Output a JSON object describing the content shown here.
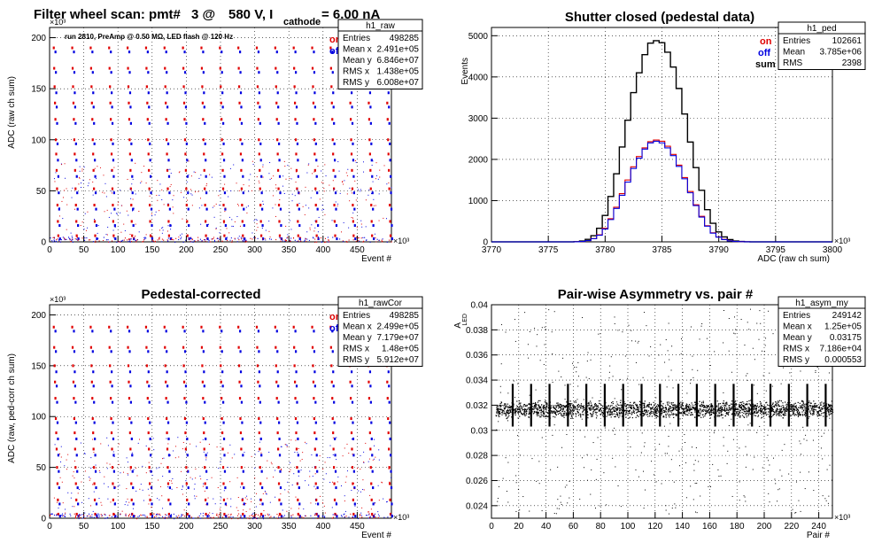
{
  "colors": {
    "on": "#e00000",
    "off": "#0000e0",
    "sum": "#000000",
    "grid": "#000000"
  },
  "panels": [
    {
      "id": "raw",
      "title_parts": [
        "Filter wheel scan: pmt#",
        "3 @",
        "580 V, I",
        "cathode",
        "= 6.00 nA"
      ],
      "subtitle": "run 2810, PreAmp @ 0.50 MΩ, LED flash @  120 Hz",
      "ylabel": "ADC (raw ch sum)",
      "xlabel": "Event #",
      "yexp": "×10³",
      "xexp": "×10³",
      "legend": [
        "on",
        "off"
      ],
      "stats": {
        "name": "h1_raw",
        "rows": [
          [
            "Entries",
            "498285"
          ],
          [
            "Mean x",
            "2.491e+05"
          ],
          [
            "Mean y",
            "6.846e+07"
          ],
          [
            "RMS x",
            "1.438e+05"
          ],
          [
            "RMS y",
            "6.008e+07"
          ]
        ]
      }
    },
    {
      "id": "ped",
      "title": "Shutter closed (pedestal data)",
      "ylabel": "Events",
      "xlabel": "ADC (raw ch sum)",
      "xexp": "×10³",
      "legend": [
        "on",
        "off",
        "sum"
      ],
      "stats": {
        "name": "h1_ped",
        "rows": [
          [
            "Entries",
            "102661"
          ],
          [
            "Mean",
            "3.785e+06"
          ],
          [
            "RMS",
            "2398"
          ]
        ]
      }
    },
    {
      "id": "rawcor",
      "title": "Pedestal-corrected",
      "ylabel": "ADC (raw, ped-corr ch sum)",
      "xlabel": "Event #",
      "yexp": "×10³",
      "xexp": "×10³",
      "legend": [
        "on",
        "off"
      ],
      "stats": {
        "name": "h1_rawCor",
        "rows": [
          [
            "Entries",
            "498285"
          ],
          [
            "Mean x",
            "2.499e+05"
          ],
          [
            "Mean y",
            "7.179e+07"
          ],
          [
            "RMS x",
            "1.48e+05"
          ],
          [
            "RMS y",
            "5.912e+07"
          ]
        ]
      }
    },
    {
      "id": "asym",
      "title": "Pair-wise Asymmetry vs. pair #",
      "ylabel": "A",
      "ylabel_sub": "LED",
      "xlabel": "Pair #",
      "xexp": "×10³",
      "stats": {
        "name": "h1_asym_my",
        "rows": [
          [
            "Entries",
            "249142"
          ],
          [
            "Mean x",
            "1.25e+05"
          ],
          [
            "Mean y",
            "0.03175"
          ],
          [
            "RMS x",
            "7.186e+04"
          ],
          [
            "RMS y",
            "0.000553"
          ]
        ]
      }
    }
  ],
  "chart_data": [
    {
      "type": "scatter",
      "name": "h1_raw",
      "x_ticks": [
        0,
        50,
        100,
        150,
        200,
        250,
        300,
        350,
        400,
        450
      ],
      "y_ticks": [
        0,
        50,
        100,
        150,
        200
      ],
      "xlim": [
        0,
        500
      ],
      "ylim": [
        0,
        210
      ],
      "grid": true,
      "cycle_period": 27,
      "levels": {
        "on": [
          190,
          170,
          152,
          136,
          120,
          100,
          86,
          70,
          52,
          36,
          20,
          6
        ],
        "off": [
          186,
          166,
          146,
          132,
          116,
          96,
          80,
          64,
          48,
          32,
          16,
          3
        ]
      }
    },
    {
      "type": "line",
      "name": "h1_ped",
      "xlim": [
        3770,
        3800
      ],
      "ylim": [
        0,
        5200
      ],
      "x_ticks": [
        3770,
        3775,
        3780,
        3785,
        3790,
        3795,
        3800
      ],
      "y_ticks": [
        0,
        1000,
        2000,
        3000,
        4000,
        5000
      ],
      "grid": true,
      "x": [
        3777.5,
        3778.0,
        3778.5,
        3779.0,
        3779.5,
        3780.0,
        3780.5,
        3781.0,
        3781.5,
        3782.0,
        3782.5,
        3783.0,
        3783.5,
        3784.0,
        3784.5,
        3785.0,
        3785.5,
        3786.0,
        3786.5,
        3787.0,
        3787.5,
        3788.0,
        3788.5,
        3789.0,
        3789.5,
        3790.0,
        3790.5,
        3791.0,
        3791.5,
        3792.0,
        3792.5
      ],
      "series": [
        {
          "name": "sum",
          "values": [
            5,
            20,
            60,
            150,
            330,
            640,
            1100,
            1650,
            2300,
            2950,
            3620,
            4100,
            4540,
            4820,
            4880,
            4830,
            4600,
            4240,
            3720,
            3100,
            2420,
            1800,
            1250,
            780,
            450,
            240,
            120,
            55,
            20,
            8,
            2
          ]
        },
        {
          "name": "on",
          "values": [
            2,
            10,
            30,
            80,
            170,
            330,
            560,
            840,
            1170,
            1500,
            1820,
            2070,
            2280,
            2430,
            2470,
            2440,
            2320,
            2120,
            1860,
            1560,
            1220,
            900,
            620,
            390,
            220,
            120,
            60,
            25,
            10,
            4,
            1
          ]
        },
        {
          "name": "off",
          "values": [
            2,
            10,
            30,
            75,
            160,
            310,
            540,
            810,
            1130,
            1450,
            1780,
            2030,
            2250,
            2400,
            2440,
            2400,
            2280,
            2090,
            1830,
            1530,
            1190,
            880,
            600,
            380,
            210,
            115,
            55,
            22,
            9,
            3,
            1
          ]
        }
      ]
    },
    {
      "type": "scatter",
      "name": "h1_rawCor",
      "x_ticks": [
        0,
        50,
        100,
        150,
        200,
        250,
        300,
        350,
        400,
        450
      ],
      "y_ticks": [
        0,
        50,
        100,
        150,
        200
      ],
      "xlim": [
        0,
        500
      ],
      "ylim": [
        0,
        210
      ],
      "grid": true,
      "cycle_period": 27,
      "levels": {
        "on": [
          188,
          168,
          150,
          134,
          118,
          98,
          84,
          68,
          50,
          34,
          18,
          4
        ],
        "off": [
          184,
          164,
          144,
          130,
          114,
          94,
          78,
          62,
          46,
          30,
          14,
          2
        ]
      }
    },
    {
      "type": "scatter",
      "name": "h1_asym_my",
      "x_ticks": [
        0,
        20,
        40,
        60,
        80,
        100,
        120,
        140,
        160,
        180,
        200,
        220,
        240
      ],
      "y_ticks": [
        0.024,
        0.026,
        0.028,
        0.03,
        0.032,
        0.034,
        0.036,
        0.038,
        0.04
      ],
      "xlim": [
        0,
        250
      ],
      "ylim": [
        0.023,
        0.04
      ],
      "grid": true,
      "band_center": 0.0317,
      "band_halfwidth": 0.0005,
      "spike_period": 13.5,
      "spike_range": [
        0.0303,
        0.0337
      ]
    }
  ]
}
